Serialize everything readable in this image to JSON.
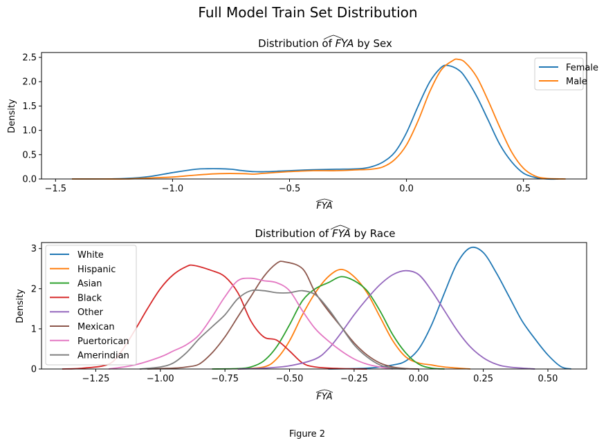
{
  "figure": {
    "suptitle": "Full Model Train Set Distribution",
    "caption": "Figure 2"
  },
  "chart_data": [
    {
      "type": "line",
      "title_prefix": "Distribution of ",
      "title_math": "FYA",
      "title_suffix": " by Sex",
      "xlabel_math": "FYA",
      "ylabel": "Density",
      "xlim": [
        -1.56,
        0.77
      ],
      "ylim": [
        0,
        2.6
      ],
      "xticks": [
        -1.5,
        -1.0,
        -0.5,
        0.0,
        0.5
      ],
      "xtick_labels": [
        "−1.5",
        "−1.0",
        "−0.5",
        "0.0",
        "0.5"
      ],
      "yticks": [
        0,
        0.5,
        1.0,
        1.5,
        2.0,
        2.5
      ],
      "ytick_labels": [
        "0.0",
        "0.5",
        "1.0",
        "1.5",
        "2.0",
        "2.5"
      ],
      "legend_position": "top-right",
      "series": [
        {
          "name": "Female",
          "color": "#1f77b4",
          "points": [
            [
              -1.43,
              0.0
            ],
            [
              -1.3,
              0.0
            ],
            [
              -1.2,
              0.01
            ],
            [
              -1.1,
              0.05
            ],
            [
              -1.0,
              0.13
            ],
            [
              -0.9,
              0.2
            ],
            [
              -0.85,
              0.21
            ],
            [
              -0.8,
              0.21
            ],
            [
              -0.75,
              0.2
            ],
            [
              -0.7,
              0.17
            ],
            [
              -0.65,
              0.15
            ],
            [
              -0.6,
              0.15
            ],
            [
              -0.55,
              0.16
            ],
            [
              -0.5,
              0.17
            ],
            [
              -0.4,
              0.19
            ],
            [
              -0.3,
              0.2
            ],
            [
              -0.2,
              0.21
            ],
            [
              -0.15,
              0.25
            ],
            [
              -0.1,
              0.35
            ],
            [
              -0.05,
              0.55
            ],
            [
              0.0,
              0.95
            ],
            [
              0.05,
              1.5
            ],
            [
              0.1,
              2.0
            ],
            [
              0.15,
              2.3
            ],
            [
              0.18,
              2.33
            ],
            [
              0.22,
              2.25
            ],
            [
              0.25,
              2.1
            ],
            [
              0.3,
              1.7
            ],
            [
              0.35,
              1.2
            ],
            [
              0.4,
              0.7
            ],
            [
              0.45,
              0.35
            ],
            [
              0.5,
              0.12
            ],
            [
              0.55,
              0.03
            ],
            [
              0.6,
              0.0
            ],
            [
              0.65,
              0.0
            ]
          ]
        },
        {
          "name": "Male",
          "color": "#ff7f0e",
          "points": [
            [
              -1.43,
              0.0
            ],
            [
              -1.3,
              0.0
            ],
            [
              -1.2,
              0.0
            ],
            [
              -1.1,
              0.02
            ],
            [
              -1.0,
              0.04
            ],
            [
              -0.9,
              0.08
            ],
            [
              -0.8,
              0.11
            ],
            [
              -0.7,
              0.11
            ],
            [
              -0.65,
              0.1
            ],
            [
              -0.6,
              0.12
            ],
            [
              -0.5,
              0.15
            ],
            [
              -0.4,
              0.17
            ],
            [
              -0.3,
              0.17
            ],
            [
              -0.2,
              0.19
            ],
            [
              -0.15,
              0.2
            ],
            [
              -0.1,
              0.25
            ],
            [
              -0.05,
              0.4
            ],
            [
              0.0,
              0.7
            ],
            [
              0.05,
              1.2
            ],
            [
              0.1,
              1.8
            ],
            [
              0.15,
              2.25
            ],
            [
              0.2,
              2.44
            ],
            [
              0.22,
              2.46
            ],
            [
              0.25,
              2.4
            ],
            [
              0.3,
              2.1
            ],
            [
              0.35,
              1.6
            ],
            [
              0.4,
              1.05
            ],
            [
              0.45,
              0.55
            ],
            [
              0.5,
              0.22
            ],
            [
              0.55,
              0.06
            ],
            [
              0.6,
              0.01
            ],
            [
              0.68,
              0.0
            ]
          ]
        }
      ]
    },
    {
      "type": "line",
      "title_prefix": "Distribution of ",
      "title_math": "FYA",
      "title_suffix": " by Race",
      "xlabel_math": "FYA",
      "ylabel": "Density",
      "xlim": [
        -1.46,
        0.65
      ],
      "ylim": [
        0,
        3.15
      ],
      "xticks": [
        -1.25,
        -1.0,
        -0.75,
        -0.5,
        -0.25,
        0.0,
        0.25,
        0.5
      ],
      "xtick_labels": [
        "−1.25",
        "−1.00",
        "−0.75",
        "−0.50",
        "−0.25",
        "0.00",
        "0.25",
        "0.50"
      ],
      "yticks": [
        0,
        1,
        2,
        3
      ],
      "ytick_labels": [
        "0",
        "1",
        "2",
        "3"
      ],
      "legend_position": "top-left",
      "series": [
        {
          "name": "White",
          "color": "#1f77b4",
          "points": [
            [
              -0.35,
              0.0
            ],
            [
              -0.2,
              0.02
            ],
            [
              -0.1,
              0.1
            ],
            [
              -0.05,
              0.2
            ],
            [
              0.0,
              0.5
            ],
            [
              0.05,
              1.1
            ],
            [
              0.1,
              1.9
            ],
            [
              0.15,
              2.65
            ],
            [
              0.2,
              3.02
            ],
            [
              0.25,
              2.9
            ],
            [
              0.3,
              2.4
            ],
            [
              0.35,
              1.8
            ],
            [
              0.4,
              1.2
            ],
            [
              0.45,
              0.75
            ],
            [
              0.5,
              0.35
            ],
            [
              0.55,
              0.06
            ],
            [
              0.59,
              0.0
            ]
          ]
        },
        {
          "name": "Hispanic",
          "color": "#ff7f0e",
          "points": [
            [
              -0.7,
              0.0
            ],
            [
              -0.6,
              0.05
            ],
            [
              -0.55,
              0.25
            ],
            [
              -0.5,
              0.7
            ],
            [
              -0.45,
              1.35
            ],
            [
              -0.4,
              1.9
            ],
            [
              -0.35,
              2.3
            ],
            [
              -0.3,
              2.48
            ],
            [
              -0.25,
              2.3
            ],
            [
              -0.2,
              1.9
            ],
            [
              -0.15,
              1.3
            ],
            [
              -0.1,
              0.7
            ],
            [
              -0.05,
              0.3
            ],
            [
              0.0,
              0.15
            ],
            [
              0.05,
              0.1
            ],
            [
              0.1,
              0.05
            ],
            [
              0.2,
              0.0
            ]
          ]
        },
        {
          "name": "Asian",
          "color": "#2ca02c",
          "points": [
            [
              -0.8,
              0.0
            ],
            [
              -0.7,
              0.01
            ],
            [
              -0.65,
              0.05
            ],
            [
              -0.6,
              0.2
            ],
            [
              -0.55,
              0.55
            ],
            [
              -0.5,
              1.1
            ],
            [
              -0.45,
              1.7
            ],
            [
              -0.4,
              2.0
            ],
            [
              -0.35,
              2.15
            ],
            [
              -0.3,
              2.3
            ],
            [
              -0.25,
              2.2
            ],
            [
              -0.2,
              1.95
            ],
            [
              -0.15,
              1.45
            ],
            [
              -0.1,
              0.85
            ],
            [
              -0.05,
              0.4
            ],
            [
              0.0,
              0.12
            ],
            [
              0.05,
              0.02
            ],
            [
              0.1,
              0.0
            ]
          ]
        },
        {
          "name": "Black",
          "color": "#d62728",
          "points": [
            [
              -1.38,
              0.0
            ],
            [
              -1.3,
              0.02
            ],
            [
              -1.2,
              0.12
            ],
            [
              -1.15,
              0.45
            ],
            [
              -1.1,
              0.95
            ],
            [
              -1.05,
              1.5
            ],
            [
              -1.0,
              2.0
            ],
            [
              -0.95,
              2.35
            ],
            [
              -0.9,
              2.55
            ],
            [
              -0.87,
              2.58
            ],
            [
              -0.8,
              2.45
            ],
            [
              -0.75,
              2.3
            ],
            [
              -0.7,
              1.9
            ],
            [
              -0.65,
              1.2
            ],
            [
              -0.6,
              0.8
            ],
            [
              -0.55,
              0.72
            ],
            [
              -0.5,
              0.45
            ],
            [
              -0.45,
              0.15
            ],
            [
              -0.4,
              0.05
            ],
            [
              -0.3,
              0.01
            ],
            [
              -0.2,
              0.0
            ]
          ]
        },
        {
          "name": "Other",
          "color": "#9467bd",
          "points": [
            [
              -0.7,
              0.0
            ],
            [
              -0.6,
              0.02
            ],
            [
              -0.5,
              0.08
            ],
            [
              -0.4,
              0.25
            ],
            [
              -0.35,
              0.5
            ],
            [
              -0.3,
              0.9
            ],
            [
              -0.25,
              1.35
            ],
            [
              -0.2,
              1.75
            ],
            [
              -0.15,
              2.1
            ],
            [
              -0.1,
              2.35
            ],
            [
              -0.05,
              2.45
            ],
            [
              0.0,
              2.35
            ],
            [
              0.05,
              1.95
            ],
            [
              0.1,
              1.45
            ],
            [
              0.15,
              0.95
            ],
            [
              0.2,
              0.55
            ],
            [
              0.25,
              0.28
            ],
            [
              0.3,
              0.12
            ],
            [
              0.35,
              0.05
            ],
            [
              0.45,
              0.0
            ]
          ]
        },
        {
          "name": "Mexican",
          "color": "#8c564b",
          "points": [
            [
              -1.05,
              0.0
            ],
            [
              -0.95,
              0.02
            ],
            [
              -0.9,
              0.05
            ],
            [
              -0.85,
              0.12
            ],
            [
              -0.8,
              0.4
            ],
            [
              -0.75,
              0.8
            ],
            [
              -0.7,
              1.3
            ],
            [
              -0.65,
              1.8
            ],
            [
              -0.6,
              2.3
            ],
            [
              -0.55,
              2.63
            ],
            [
              -0.52,
              2.67
            ],
            [
              -0.45,
              2.5
            ],
            [
              -0.4,
              1.9
            ],
            [
              -0.35,
              1.45
            ],
            [
              -0.3,
              1.05
            ],
            [
              -0.25,
              0.65
            ],
            [
              -0.2,
              0.35
            ],
            [
              -0.15,
              0.15
            ],
            [
              -0.1,
              0.05
            ],
            [
              -0.05,
              0.01
            ],
            [
              0.0,
              0.0
            ]
          ]
        },
        {
          "name": "Puertorican",
          "color": "#e377c2",
          "points": [
            [
              -1.2,
              0.0
            ],
            [
              -1.1,
              0.1
            ],
            [
              -1.0,
              0.3
            ],
            [
              -0.95,
              0.45
            ],
            [
              -0.9,
              0.6
            ],
            [
              -0.85,
              0.85
            ],
            [
              -0.8,
              1.3
            ],
            [
              -0.75,
              1.8
            ],
            [
              -0.7,
              2.2
            ],
            [
              -0.65,
              2.26
            ],
            [
              -0.6,
              2.2
            ],
            [
              -0.55,
              2.15
            ],
            [
              -0.5,
              1.95
            ],
            [
              -0.45,
              1.45
            ],
            [
              -0.4,
              1.0
            ],
            [
              -0.35,
              0.7
            ],
            [
              -0.3,
              0.45
            ],
            [
              -0.25,
              0.25
            ],
            [
              -0.2,
              0.12
            ],
            [
              -0.15,
              0.05
            ],
            [
              -0.1,
              0.0
            ]
          ]
        },
        {
          "name": "Amerindian",
          "color": "#7f7f7f",
          "points": [
            [
              -1.08,
              0.0
            ],
            [
              -1.0,
              0.05
            ],
            [
              -0.95,
              0.15
            ],
            [
              -0.9,
              0.4
            ],
            [
              -0.85,
              0.75
            ],
            [
              -0.8,
              1.05
            ],
            [
              -0.75,
              1.35
            ],
            [
              -0.7,
              1.75
            ],
            [
              -0.65,
              1.95
            ],
            [
              -0.6,
              1.95
            ],
            [
              -0.55,
              1.9
            ],
            [
              -0.5,
              1.9
            ],
            [
              -0.45,
              1.95
            ],
            [
              -0.4,
              1.85
            ],
            [
              -0.35,
              1.5
            ],
            [
              -0.3,
              1.05
            ],
            [
              -0.25,
              0.6
            ],
            [
              -0.2,
              0.3
            ],
            [
              -0.15,
              0.1
            ],
            [
              -0.1,
              0.02
            ],
            [
              -0.05,
              0.0
            ]
          ]
        }
      ]
    }
  ]
}
